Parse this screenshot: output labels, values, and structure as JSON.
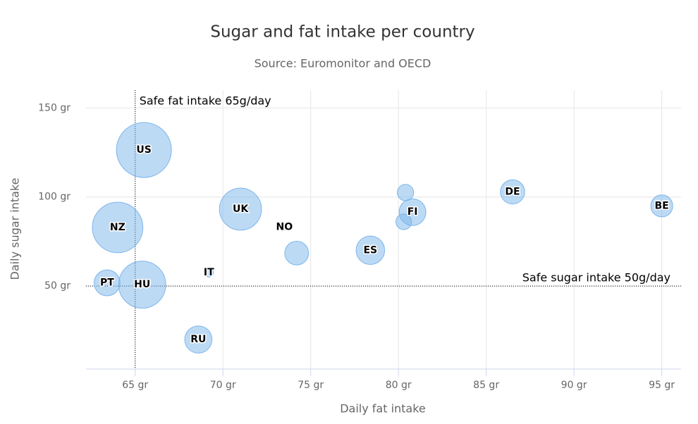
{
  "chart_data": {
    "type": "bubble",
    "title": "Sugar and fat intake per country",
    "subtitle": "Source: Euromonitor and OECD",
    "x_label": "Daily fat intake",
    "y_label": "Daily sugar intake",
    "xlim": [
      62.2,
      96.1
    ],
    "ylim": [
      3.4,
      160
    ],
    "xticks": [
      {
        "value": 65,
        "label": "65 gr"
      },
      {
        "value": 70,
        "label": "70 gr"
      },
      {
        "value": 75,
        "label": "75 gr"
      },
      {
        "value": 80,
        "label": "80 gr"
      },
      {
        "value": 85,
        "label": "85 gr"
      },
      {
        "value": 90,
        "label": "90 gr"
      },
      {
        "value": 95,
        "label": "95 gr"
      }
    ],
    "yticks": [
      {
        "value": 50,
        "label": "50 gr"
      },
      {
        "value": 100,
        "label": "100 gr"
      },
      {
        "value": 150,
        "label": "150 gr"
      }
    ],
    "grid": true,
    "plot_lines": [
      {
        "axis": "x",
        "value": 65,
        "label": "Safe fat intake 65g/day"
      },
      {
        "axis": "y",
        "value": 50,
        "label": "Safe sugar intake 50g/day"
      }
    ],
    "series": [
      {
        "color": "#7cb5ec",
        "x": [
          95,
          86.5,
          80.8,
          80.4,
          80.3,
          78.4,
          74.2,
          73.5,
          71,
          69.2,
          68.6,
          65.5,
          65.4,
          63.4,
          64
        ],
        "values": [
          95,
          102.9,
          91.5,
          102.5,
          86.1,
          70.1,
          68.5,
          83.1,
          93.2,
          57.6,
          20,
          126.4,
          50.8,
          51.8,
          82.9
        ],
        "sizes": [
          13.8,
          14.7,
          15.8,
          12,
          11.8,
          16.6,
          14.5,
          10,
          24.7,
          10.4,
          16,
          35.3,
          28.5,
          15.4,
          31.3
        ],
        "labels": [
          "BE",
          "DE",
          "FI",
          null,
          null,
          "ES",
          null,
          "NO",
          "UK",
          "IT",
          "RU",
          "US",
          "HU",
          "PT",
          "NZ"
        ]
      }
    ]
  }
}
